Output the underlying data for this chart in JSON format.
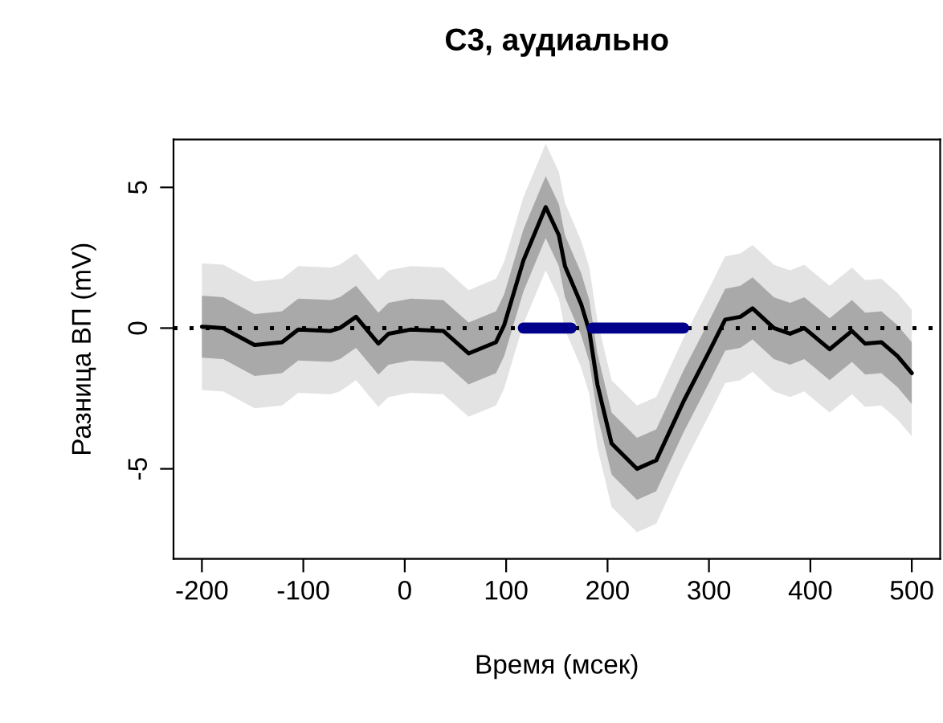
{
  "chart_data": {
    "type": "line",
    "title": "C3, аудиально",
    "xlabel": "Время (мсек)",
    "ylabel": "Разница ВП (mV)",
    "xlim": [
      -228,
      528
    ],
    "xticks": [
      -200,
      -100,
      0,
      100,
      200,
      300,
      400,
      500
    ],
    "ylim": [
      -8.2,
      6.7
    ],
    "yticks": [
      -5,
      0,
      5
    ],
    "grid": false,
    "legend": false,
    "ref_lines": [
      {
        "axis": "y",
        "value": 0,
        "color": "#000000",
        "line_style": "dotted"
      }
    ],
    "series": [
      {
        "color": "#e3e3e3",
        "x": [
          -200,
          -179,
          -148,
          -121,
          -105,
          -73,
          -64,
          -48,
          -26,
          -16,
          6,
          38,
          63,
          90,
          98,
          117,
          139,
          152,
          158,
          174,
          182,
          190,
          204,
          229,
          248,
          275,
          300,
          316,
          331,
          343,
          364,
          380,
          394,
          419,
          441,
          454,
          470,
          486,
          500
        ],
        "values": [
          null,
          null,
          null,
          null,
          null,
          null,
          null,
          null,
          null,
          null,
          null,
          null,
          null,
          null,
          null,
          null,
          null,
          null,
          null,
          null,
          null,
          null,
          null,
          null,
          null,
          null,
          null,
          null,
          null,
          null,
          null,
          null,
          null,
          null,
          null,
          null,
          null,
          null,
          null
        ],
        "lower": [
          -2.2,
          -2.25,
          -2.85,
          -2.75,
          -2.3,
          -2.35,
          -2.25,
          -1.85,
          -2.8,
          -2.45,
          -2.3,
          -2.35,
          -3.15,
          -2.75,
          -2.15,
          0.15,
          2.05,
          1.05,
          -0.05,
          -1.4,
          -2.35,
          -4.25,
          -6.35,
          -7.25,
          -6.95,
          -4.85,
          -3.1,
          -1.95,
          -1.85,
          -1.55,
          -2.25,
          -2.45,
          -2.25,
          -3.0,
          -2.35,
          -2.8,
          -2.75,
          -3.25,
          -3.85
        ],
        "upper": [
          2.3,
          2.25,
          1.65,
          1.75,
          2.2,
          2.15,
          2.25,
          2.65,
          1.7,
          2.05,
          2.2,
          2.15,
          1.35,
          1.75,
          2.35,
          4.65,
          6.55,
          5.55,
          4.45,
          3.1,
          2.15,
          0.25,
          -1.85,
          -2.75,
          -2.45,
          -0.35,
          1.4,
          2.55,
          2.65,
          2.95,
          2.25,
          2.05,
          2.25,
          1.5,
          2.15,
          1.7,
          1.75,
          1.25,
          0.65
        ]
      },
      {
        "color": "#a9a9a9",
        "x": [
          -200,
          -179,
          -148,
          -121,
          -105,
          -73,
          -64,
          -48,
          -26,
          -16,
          6,
          38,
          63,
          90,
          98,
          117,
          139,
          152,
          158,
          174,
          182,
          190,
          204,
          229,
          248,
          275,
          300,
          316,
          331,
          343,
          364,
          380,
          394,
          419,
          441,
          454,
          470,
          486,
          500
        ],
        "values": [
          null,
          null,
          null,
          null,
          null,
          null,
          null,
          null,
          null,
          null,
          null,
          null,
          null,
          null,
          null,
          null,
          null,
          null,
          null,
          null,
          null,
          null,
          null,
          null,
          null,
          null,
          null,
          null,
          null,
          null,
          null,
          null,
          null,
          null,
          null,
          null,
          null,
          null,
          null
        ],
        "lower": [
          -1.05,
          -1.1,
          -1.7,
          -1.6,
          -1.15,
          -1.2,
          -1.1,
          -0.7,
          -1.65,
          -1.3,
          -1.15,
          -1.2,
          -2.0,
          -1.6,
          -1.0,
          1.3,
          3.2,
          2.2,
          1.1,
          -0.25,
          -1.2,
          -3.1,
          -5.2,
          -6.1,
          -5.8,
          -3.7,
          -1.95,
          -0.8,
          -0.7,
          -0.4,
          -1.1,
          -1.3,
          -1.1,
          -1.85,
          -1.2,
          -1.65,
          -1.6,
          -2.1,
          -2.7
        ],
        "upper": [
          1.15,
          1.1,
          0.5,
          0.6,
          1.05,
          1.0,
          1.1,
          1.5,
          0.55,
          0.9,
          1.05,
          1.0,
          0.2,
          0.6,
          1.2,
          3.5,
          5.4,
          4.4,
          3.3,
          1.95,
          1.0,
          -0.9,
          -3.0,
          -3.9,
          -3.6,
          -1.5,
          0.25,
          1.4,
          1.5,
          1.8,
          1.1,
          0.9,
          1.1,
          0.35,
          1.0,
          0.55,
          0.6,
          0.1,
          -0.5
        ]
      },
      {
        "color": "#000000",
        "x": [
          -200,
          -179,
          -148,
          -121,
          -105,
          -73,
          -64,
          -48,
          -26,
          -16,
          6,
          38,
          63,
          90,
          98,
          117,
          139,
          152,
          158,
          174,
          182,
          190,
          204,
          229,
          248,
          275,
          300,
          316,
          331,
          343,
          364,
          380,
          394,
          419,
          441,
          454,
          470,
          486,
          500
        ],
        "values": [
          0.05,
          0,
          -0.6,
          -0.5,
          -0.05,
          -0.1,
          0,
          0.4,
          -0.55,
          -0.2,
          -0.05,
          -0.1,
          -0.9,
          -0.5,
          0.1,
          2.4,
          4.3,
          3.3,
          2.2,
          0.85,
          -0.1,
          -2.0,
          -4.1,
          -5.0,
          -4.7,
          -2.6,
          -0.85,
          0.3,
          0.4,
          0.7,
          0,
          -0.2,
          0,
          -0.75,
          -0.1,
          -0.55,
          -0.5,
          -1.0,
          -1.6
        ]
      },
      {
        "color": "#00008b",
        "x": [
          117,
          164
        ],
        "values": [
          0,
          0
        ]
      },
      {
        "color": "#00008b",
        "x": [
          185,
          275
        ],
        "values": [
          0,
          0
        ]
      }
    ]
  }
}
